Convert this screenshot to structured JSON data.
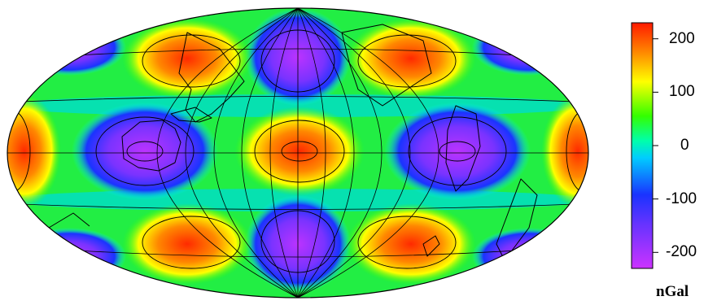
{
  "map": {
    "projection": "hammer",
    "field": "sectoral harmonic, degree 4 order 4 and tesseral pattern",
    "colors": {
      "min": "#cc33ff",
      "mid_blue": "#1a33ff",
      "cyan": "#00ffff",
      "green": "#33ff00",
      "yellow": "#ffff00",
      "max": "#ff1a00"
    },
    "graticule": "on",
    "coastlines": "on",
    "contours": "on"
  },
  "colorbar": {
    "ticks": [
      {
        "value": 200,
        "label": "200"
      },
      {
        "value": 100,
        "label": "100"
      },
      {
        "value": 0,
        "label": "0"
      },
      {
        "value": -100,
        "label": "-100"
      },
      {
        "value": -200,
        "label": "-200"
      }
    ],
    "range": [
      -230,
      230
    ],
    "unit": "nGal"
  }
}
